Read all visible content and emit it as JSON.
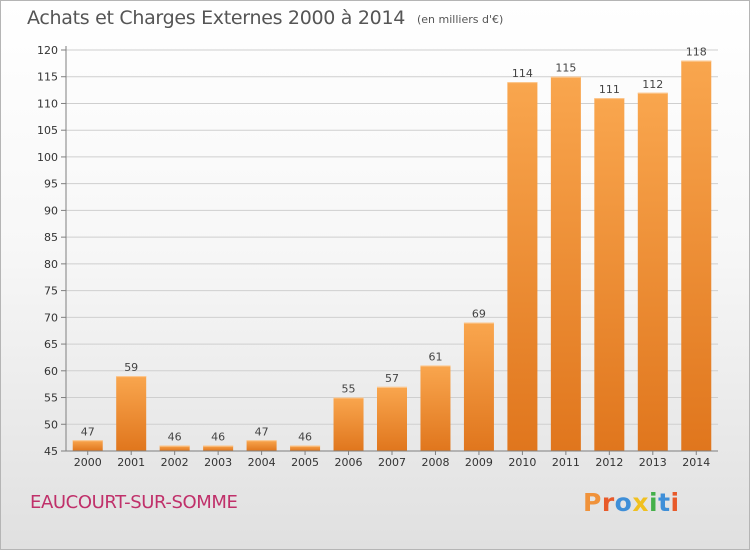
{
  "header": {
    "title": "Achats et Charges Externes 2000 à 2014",
    "unit": "(en milliers d'€)"
  },
  "footer": {
    "commune": "EAUCOURT-SUR-SOMME",
    "logo": "Proxiti"
  },
  "colors": {
    "bar_light": "#f9a64e",
    "bar_dark": "#e0761d",
    "grid": "#cfcfcf",
    "axis": "#7f7f7f",
    "title": "#555555",
    "commune": "#c0306a",
    "logo_letters": [
      "#f0923a",
      "#e85a2a",
      "#3f8fd8",
      "#f0c020",
      "#44b04a",
      "#3f8fd8",
      "#e85a2a"
    ]
  },
  "chart_data": {
    "type": "bar",
    "title": "Achats et Charges Externes 2000 à 2014",
    "subtitle": "(en milliers d'€)",
    "xlabel": "",
    "ylabel": "",
    "categories": [
      "2000",
      "2001",
      "2002",
      "2003",
      "2004",
      "2005",
      "2006",
      "2007",
      "2008",
      "2009",
      "2010",
      "2011",
      "2012",
      "2013",
      "2014"
    ],
    "values": [
      47,
      59,
      46,
      46,
      47,
      46,
      55,
      57,
      61,
      69,
      114,
      115,
      111,
      112,
      118
    ],
    "ylim": [
      45,
      120
    ],
    "yticks": [
      45,
      50,
      55,
      60,
      65,
      70,
      75,
      80,
      85,
      90,
      95,
      100,
      105,
      110,
      115,
      120
    ],
    "grid": true,
    "legend": "none"
  }
}
